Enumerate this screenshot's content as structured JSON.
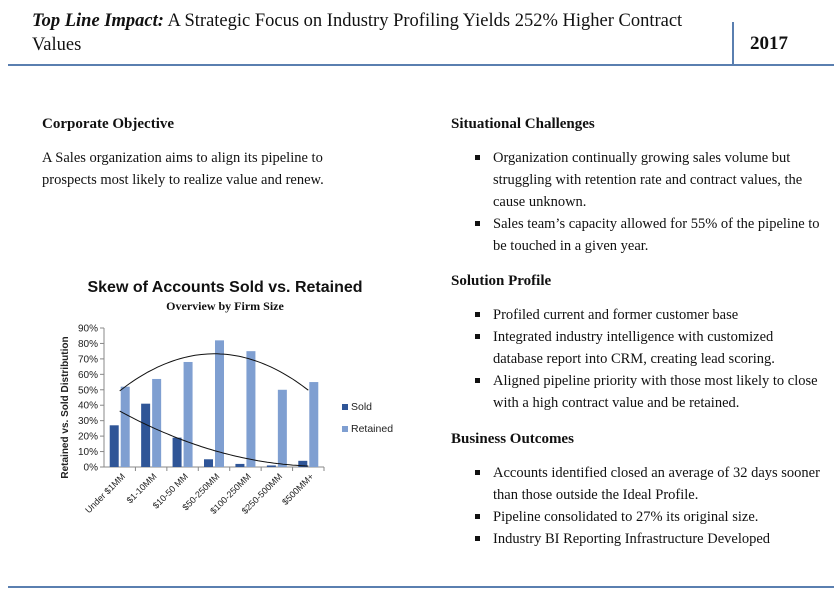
{
  "header": {
    "title_lead": "Top Line Impact:",
    "title_rest": " A Strategic Focus on Industry Profiling Yields 252% Higher Contract Values",
    "year": "2017"
  },
  "corporate_objective": {
    "title": "Corporate Objective",
    "text": "A Sales organization aims to align its pipeline to prospects most likely to realize value and renew."
  },
  "situational_challenges": {
    "title": "Situational Challenges",
    "bullets": [
      "Organization continually growing sales volume but struggling with retention rate and contract values, the cause unknown.",
      "Sales team’s capacity allowed for 55% of the pipeline to be touched in a given year."
    ]
  },
  "solution_profile": {
    "title": "Solution Profile",
    "bullets": [
      "Profiled current and former customer base",
      "Integrated industry intelligence with customized database report into CRM, creating lead scoring.",
      "Aligned pipeline priority with those most likely to close with a high contract value and be retained."
    ]
  },
  "business_outcomes": {
    "title": "Business Outcomes",
    "bullets": [
      "Accounts identified closed an average of 32 days sooner than those outside the Ideal Profile.",
      "Pipeline consolidated to 27% its original size.",
      "Industry BI Reporting Infrastructure Developed"
    ]
  },
  "chart_data": {
    "type": "bar",
    "title": "Skew of Accounts Sold vs. Retained",
    "subtitle": "Overview by Firm Size",
    "ylabel": "Retained vs. Sold Distribution",
    "xlabel": "",
    "ylim": [
      0,
      90
    ],
    "yticks": [
      "0%",
      "10%",
      "20%",
      "30%",
      "40%",
      "50%",
      "60%",
      "70%",
      "80%",
      "90%"
    ],
    "categories": [
      "Under $1MM",
      "$1-10MM",
      "$10-50 MM",
      "$50-250MM",
      "$100-250MM",
      "$250-500MM",
      "$500MM+"
    ],
    "series": [
      {
        "name": "Sold",
        "color": "#2f5597",
        "values": [
          27,
          41,
          19,
          5,
          2,
          1,
          4
        ]
      },
      {
        "name": "Retained",
        "color": "#7f9fd1",
        "values": [
          52,
          57,
          68,
          82,
          75,
          50,
          55
        ]
      }
    ],
    "trendlines": true,
    "legend": "right"
  }
}
